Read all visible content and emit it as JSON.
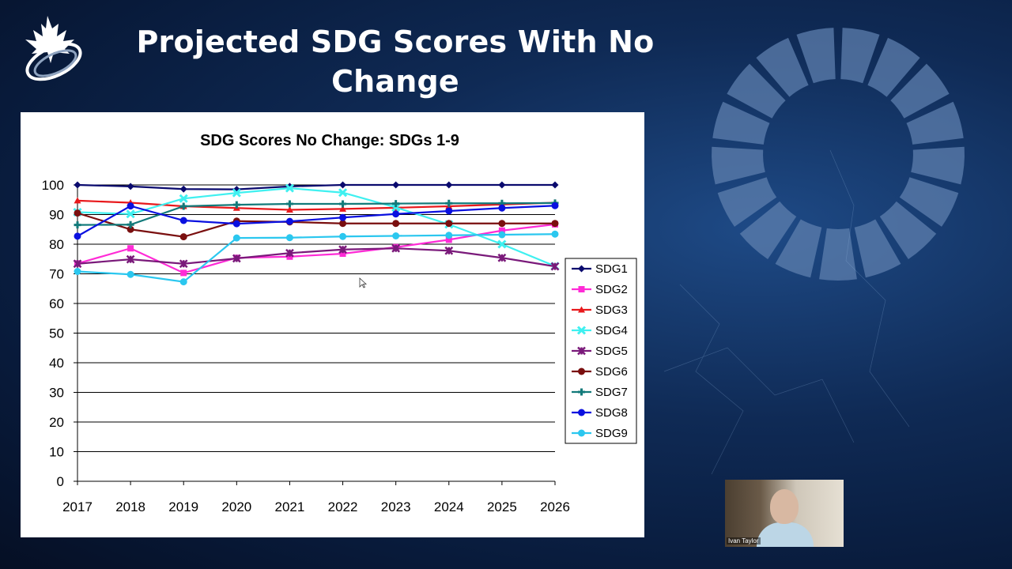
{
  "slide": {
    "title_line1": "Projected SDG Scores With No",
    "title_line2": "Change"
  },
  "webcam": {
    "participant_name": "Ivan Taylor"
  },
  "colors": {
    "background": "#0a1f44",
    "wheel": "#5d7fae"
  },
  "chart_data": {
    "type": "line",
    "title": "SDG Scores No Change: SDGs 1-9",
    "xlabel": "",
    "ylabel": "",
    "ylim": [
      0,
      100
    ],
    "yticks": [
      0,
      10,
      20,
      30,
      40,
      50,
      60,
      70,
      80,
      90,
      100
    ],
    "grid": true,
    "legend_position": "right",
    "x": [
      "2017",
      "2018",
      "2019",
      "2020",
      "2021",
      "2022",
      "2023",
      "2024",
      "2025",
      "2026"
    ],
    "series": [
      {
        "name": "SDG1",
        "color": "#0a0a6e",
        "marker": "diamond",
        "values": [
          100,
          99.5,
          98.6,
          98.5,
          99.5,
          100,
          100,
          100,
          100,
          100
        ]
      },
      {
        "name": "SDG2",
        "color": "#ff2bd6",
        "marker": "square",
        "values": [
          73.5,
          78.6,
          70.3,
          75.4,
          75.8,
          76.8,
          79,
          81.5,
          84.6,
          86.7
        ]
      },
      {
        "name": "SDG3",
        "color": "#e8191c",
        "marker": "triangle",
        "values": [
          94.7,
          94,
          92.8,
          92.2,
          91.6,
          91.9,
          92.3,
          92.8,
          93.4,
          94
        ]
      },
      {
        "name": "SDG4",
        "color": "#3ff0f0",
        "marker": "x",
        "values": [
          90.8,
          90.2,
          95.4,
          97.3,
          98.9,
          97.4,
          92.4,
          86.7,
          80,
          72.6
        ]
      },
      {
        "name": "SDG5",
        "color": "#7a1a7a",
        "marker": "star",
        "values": [
          73.4,
          74.9,
          73.4,
          75.2,
          77,
          78.2,
          78.6,
          77.8,
          75.4,
          72.5
        ]
      },
      {
        "name": "SDG6",
        "color": "#7a0f0f",
        "marker": "circle",
        "values": [
          90.5,
          85,
          82.5,
          87.8,
          87.5,
          87,
          87,
          87,
          87,
          87
        ]
      },
      {
        "name": "SDG7",
        "color": "#127a7a",
        "marker": "plus",
        "values": [
          86.5,
          86.6,
          92.8,
          93.3,
          93.6,
          93.6,
          93.7,
          93.8,
          93.8,
          93.9
        ]
      },
      {
        "name": "SDG8",
        "color": "#0a10e0",
        "marker": "dash",
        "values": [
          82.7,
          92.9,
          88,
          86.9,
          87.7,
          89,
          90.2,
          91.2,
          92.2,
          93
        ]
      },
      {
        "name": "SDG9",
        "color": "#2bc7ef",
        "marker": "dash",
        "values": [
          70.8,
          69.8,
          67.3,
          82.1,
          82.2,
          82.6,
          82.8,
          83,
          83.2,
          83.4
        ]
      }
    ]
  }
}
